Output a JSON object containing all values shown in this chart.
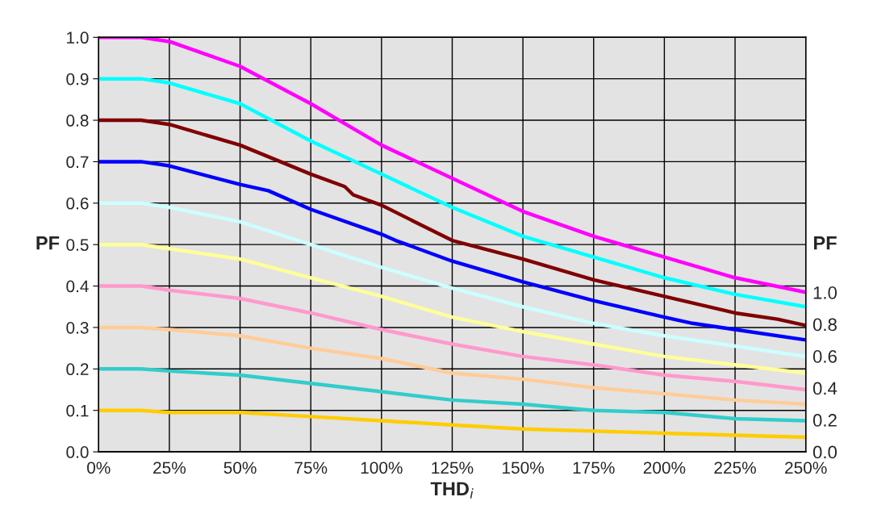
{
  "chart_data": {
    "type": "line",
    "xlabel": "THD$_{i}$",
    "ylabel": "PF",
    "y2label": "PF",
    "xlim": [
      0,
      250
    ],
    "xticks": [
      {
        "value": 0,
        "label": "0%"
      },
      {
        "value": 25,
        "label": "25%"
      },
      {
        "value": 50,
        "label": "50%"
      },
      {
        "value": 75,
        "label": "75%"
      },
      {
        "value": 100,
        "label": "100%"
      },
      {
        "value": 125,
        "label": "125%"
      },
      {
        "value": 150,
        "label": "150%"
      },
      {
        "value": 175,
        "label": "175%"
      },
      {
        "value": 200,
        "label": "200%"
      },
      {
        "value": 225,
        "label": "225%"
      },
      {
        "value": 250,
        "label": "250%"
      }
    ],
    "ylim": [
      0,
      1
    ],
    "yticks": [
      {
        "value": 0,
        "label": "0.0"
      },
      0.1,
      0.2,
      0.3,
      0.4,
      0.5,
      0.6,
      0.7,
      0.8,
      0.9,
      {
        "value": 1,
        "label": "1.0"
      }
    ],
    "y2lim": [
      0,
      2.6
    ],
    "y2ticks": [
      {
        "value": 0,
        "label": "0.0"
      },
      0.2,
      0.4,
      0.6,
      0.8,
      {
        "value": 1,
        "label": "1.0"
      }
    ],
    "grid": true,
    "legend": false,
    "marker": "none",
    "line_style": "solid",
    "series": [
      {
        "color": "#ff00ff",
        "x": [
          0,
          15,
          25,
          50,
          75,
          100,
          125,
          150,
          175,
          200,
          225,
          250
        ],
        "values": [
          1.0,
          1.0,
          0.99,
          0.93,
          0.84,
          0.74,
          0.66,
          0.58,
          0.52,
          0.47,
          0.42,
          0.385
        ]
      },
      {
        "color": "#00ffff",
        "x": [
          0,
          15,
          25,
          50,
          75,
          100,
          125,
          150,
          175,
          200,
          225,
          250
        ],
        "values": [
          0.9,
          0.9,
          0.89,
          0.84,
          0.75,
          0.67,
          0.59,
          0.52,
          0.47,
          0.42,
          0.38,
          0.35
        ]
      },
      {
        "color": "#800000",
        "x": [
          0,
          15,
          25,
          50,
          75,
          87,
          90,
          100,
          125,
          150,
          175,
          200,
          225,
          240,
          250
        ],
        "values": [
          0.8,
          0.8,
          0.79,
          0.74,
          0.67,
          0.64,
          0.62,
          0.595,
          0.51,
          0.465,
          0.415,
          0.375,
          0.335,
          0.32,
          0.305
        ]
      },
      {
        "color": "#0000ff",
        "x": [
          0,
          15,
          25,
          50,
          60,
          75,
          100,
          105,
          125,
          150,
          175,
          200,
          210,
          225,
          250
        ],
        "values": [
          0.7,
          0.7,
          0.69,
          0.645,
          0.63,
          0.585,
          0.525,
          0.51,
          0.46,
          0.41,
          0.365,
          0.325,
          0.31,
          0.295,
          0.27
        ]
      },
      {
        "color": "#ccffff",
        "x": [
          0,
          15,
          25,
          50,
          75,
          100,
          125,
          150,
          175,
          200,
          225,
          250
        ],
        "values": [
          0.6,
          0.6,
          0.59,
          0.555,
          0.5,
          0.445,
          0.395,
          0.35,
          0.31,
          0.28,
          0.255,
          0.23
        ]
      },
      {
        "color": "#ffff99",
        "x": [
          0,
          15,
          25,
          50,
          75,
          100,
          125,
          150,
          175,
          200,
          225,
          250
        ],
        "values": [
          0.5,
          0.5,
          0.49,
          0.465,
          0.42,
          0.375,
          0.325,
          0.29,
          0.26,
          0.23,
          0.21,
          0.19
        ]
      },
      {
        "color": "#ff99cc",
        "x": [
          0,
          15,
          25,
          50,
          75,
          100,
          125,
          150,
          175,
          200,
          225,
          250
        ],
        "values": [
          0.4,
          0.4,
          0.39,
          0.37,
          0.335,
          0.295,
          0.26,
          0.23,
          0.21,
          0.185,
          0.17,
          0.15
        ]
      },
      {
        "color": "#ffcc99",
        "x": [
          0,
          15,
          25,
          50,
          75,
          100,
          125,
          150,
          175,
          200,
          225,
          250
        ],
        "values": [
          0.3,
          0.3,
          0.295,
          0.28,
          0.25,
          0.225,
          0.19,
          0.175,
          0.155,
          0.14,
          0.125,
          0.115
        ]
      },
      {
        "color": "#33cccc",
        "x": [
          0,
          15,
          25,
          50,
          75,
          100,
          125,
          150,
          175,
          200,
          225,
          250
        ],
        "values": [
          0.2,
          0.2,
          0.195,
          0.185,
          0.165,
          0.145,
          0.125,
          0.115,
          0.1,
          0.095,
          0.08,
          0.075
        ]
      },
      {
        "color": "#ffcc00",
        "x": [
          0,
          15,
          25,
          50,
          75,
          100,
          125,
          150,
          175,
          200,
          225,
          250
        ],
        "values": [
          0.1,
          0.1,
          0.095,
          0.095,
          0.085,
          0.075,
          0.065,
          0.055,
          0.05,
          0.045,
          0.04,
          0.035
        ]
      }
    ]
  }
}
